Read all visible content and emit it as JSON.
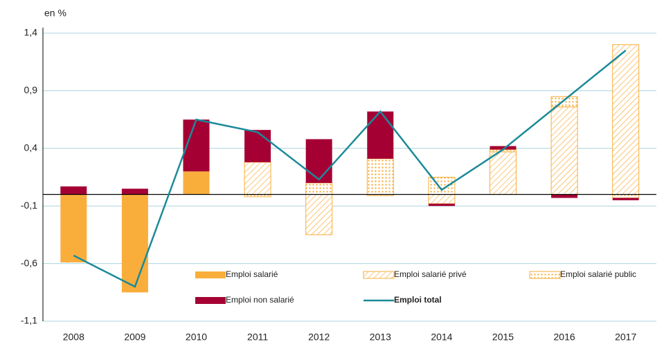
{
  "chart_data": {
    "type": "bar",
    "stacked": true,
    "y_label": "en %",
    "categories": [
      "2008",
      "2009",
      "2010",
      "2011",
      "2012",
      "2013",
      "2014",
      "2015",
      "2016",
      "2017"
    ],
    "series": [
      {
        "name": "Emploi salarié",
        "color": "#f9ae3c",
        "pattern": "solid",
        "values": [
          -0.59,
          -0.85,
          0.2,
          null,
          null,
          null,
          null,
          null,
          null,
          null
        ]
      },
      {
        "name": "Emploi salarié privé",
        "color": "#f9ae3c",
        "pattern": "hatch",
        "values": [
          null,
          null,
          null,
          0.28,
          -0.35,
          -0.01,
          -0.08,
          0.37,
          0.76,
          1.3
        ]
      },
      {
        "name": "Emploi salarié public",
        "color": "#f9ae3c",
        "pattern": "dots",
        "values": [
          null,
          null,
          null,
          -0.02,
          0.1,
          0.31,
          0.15,
          0.02,
          0.09,
          -0.03
        ]
      },
      {
        "name": "Emploi non salarié",
        "color": "#a50034",
        "pattern": "solid",
        "values": [
          0.07,
          0.05,
          0.45,
          0.28,
          0.38,
          0.41,
          -0.02,
          0.03,
          -0.03,
          -0.02
        ]
      },
      {
        "name": "Emploi total",
        "color": "#1b8a99",
        "type": "line",
        "values": [
          -0.53,
          -0.8,
          0.65,
          0.54,
          0.13,
          0.72,
          0.04,
          0.39,
          0.82,
          1.25
        ]
      }
    ],
    "ylim": [
      -1.1,
      1.4
    ],
    "yticks": [
      {
        "value": -1.1,
        "label": "-1,1"
      },
      {
        "value": -0.6,
        "label": "-0,6"
      },
      {
        "value": -0.1,
        "label": "-0,1"
      },
      {
        "value": 0.4,
        "label": "0,4"
      },
      {
        "value": 0.9,
        "label": "0,9"
      },
      {
        "value": 1.4,
        "label": "1,4"
      }
    ],
    "grid": true,
    "legend": "bottom"
  }
}
